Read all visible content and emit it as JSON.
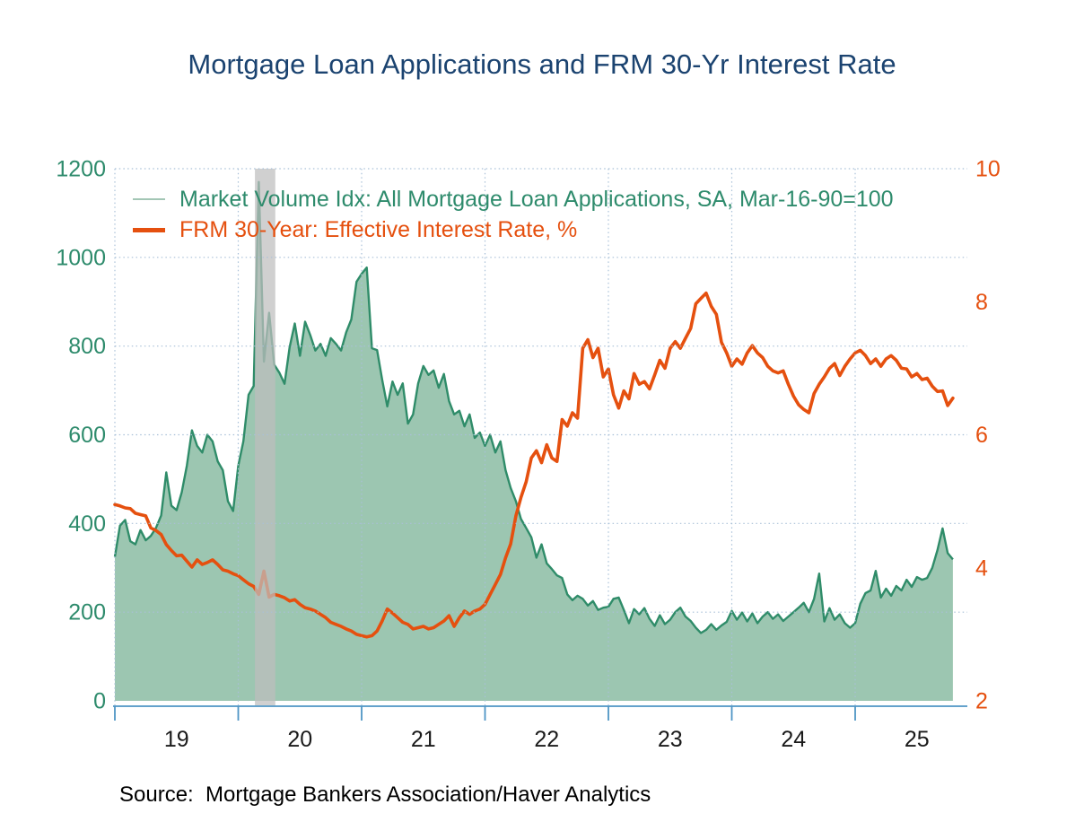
{
  "title": "Mortgage Loan Applications and FRM 30-Yr Interest Rate",
  "source_line": "Source:  Mortgage Bankers Association/Haver Analytics",
  "legend": [
    {
      "label": "Market Volume Idx: All Mortgage Loan Applications, SA, Mar-16-90=100",
      "marker_color": "#a3c6b5",
      "text_color": "#2e8b6c"
    },
    {
      "label": "FRM 30-Year: Effective Interest Rate, %",
      "marker_color": "#e5500f",
      "text_color": "#e5500f"
    }
  ],
  "colors": {
    "title": "#1b4370",
    "volume_fill": "#9cc6b1",
    "volume_line": "#2f8c69",
    "rate_line": "#e5500f",
    "gridline": "#a9c0d8",
    "axis_line": "#4e95c5",
    "left_tick_label": "#2e8b6c",
    "right_tick_label": "#e5500f",
    "x_tick_label": "#1a1a1a",
    "recession_band": "rgba(190,190,190,0.72)"
  },
  "axes": {
    "left": {
      "tick_labels": [
        "0",
        "200",
        "400",
        "600",
        "800",
        "1000",
        "1200"
      ],
      "tick_values": [
        0,
        200,
        400,
        600,
        800,
        1000,
        1200
      ]
    },
    "right": {
      "tick_labels": [
        "2",
        "4",
        "6",
        "8",
        "10"
      ],
      "tick_values": [
        2,
        4,
        6,
        8,
        10
      ]
    },
    "x": {
      "tick_labels": [
        "19",
        "20",
        "21",
        "22",
        "23",
        "24",
        "25"
      ],
      "tick_years": [
        2019,
        2020,
        2021,
        2022,
        2023,
        2024,
        2025
      ]
    }
  },
  "chart_data": {
    "type": "area+line combo, dual y-axis, weekly time series",
    "x_domain": [
      2019.0,
      2025.792
    ],
    "x_start": 2019.0,
    "x_step_years": 0.0416667,
    "left_ylim": [
      0,
      1200
    ],
    "right_ylim": [
      2,
      10
    ],
    "grid": "dotted horizontal at left-axis ticks, dotted vertical at year ticks",
    "legend_position": "top-left inside plot",
    "recession_band": {
      "x_start": 2020.135,
      "x_end": 2020.3,
      "note": "gray shaded recession bar (COVID-19)"
    },
    "series": [
      {
        "name": "Market Volume Idx: All Mortgage Loan Applications, SA, Mar-16-90=100",
        "type": "area",
        "axis": "left",
        "values": [
          325,
          395,
          408,
          360,
          353,
          385,
          362,
          372,
          390,
          418,
          515,
          440,
          430,
          470,
          530,
          610,
          575,
          560,
          600,
          585,
          540,
          520,
          450,
          428,
          530,
          585,
          690,
          710,
          1170,
          765,
          875,
          758,
          740,
          715,
          798,
          851,
          778,
          855,
          825,
          790,
          805,
          778,
          818,
          805,
          790,
          831,
          860,
          945,
          963,
          977,
          795,
          791,
          724,
          664,
          720,
          690,
          716,
          625,
          646,
          716,
          755,
          735,
          745,
          706,
          737,
          676,
          646,
          654,
          619,
          646,
          593,
          605,
          575,
          600,
          560,
          585,
          520,
          480,
          450,
          410,
          390,
          369,
          323,
          353,
          310,
          297,
          283,
          277,
          240,
          227,
          237,
          230,
          215,
          225,
          205,
          210,
          212,
          230,
          233,
          205,
          175,
          207,
          195,
          209,
          185,
          169,
          193,
          173,
          183,
          200,
          210,
          190,
          180,
          165,
          153,
          160,
          173,
          160,
          170,
          178,
          203,
          183,
          199,
          179,
          197,
          175,
          190,
          200,
          185,
          195,
          180,
          190,
          200,
          210,
          221,
          200,
          230,
          287,
          179,
          209,
          183,
          195,
          175,
          165,
          175,
          219,
          243,
          249,
          293,
          233,
          253,
          237,
          259,
          249,
          273,
          257,
          279,
          273,
          277,
          300,
          340,
          389,
          333,
          319
        ]
      },
      {
        "name": "FRM 30-Year: Effective Interest Rate, %",
        "type": "line",
        "axis": "right",
        "values": [
          4.95,
          4.93,
          4.9,
          4.89,
          4.82,
          4.8,
          4.78,
          4.6,
          4.56,
          4.5,
          4.35,
          4.26,
          4.18,
          4.19,
          4.1,
          4.01,
          4.12,
          4.05,
          4.08,
          4.12,
          4.05,
          3.97,
          3.95,
          3.91,
          3.88,
          3.82,
          3.76,
          3.72,
          3.6,
          3.95,
          3.56,
          3.6,
          3.58,
          3.55,
          3.5,
          3.52,
          3.45,
          3.4,
          3.38,
          3.35,
          3.3,
          3.25,
          3.18,
          3.15,
          3.12,
          3.08,
          3.05,
          3.0,
          2.98,
          2.96,
          2.98,
          3.05,
          3.2,
          3.38,
          3.32,
          3.25,
          3.18,
          3.15,
          3.08,
          3.1,
          3.12,
          3.08,
          3.1,
          3.15,
          3.2,
          3.28,
          3.12,
          3.25,
          3.35,
          3.3,
          3.35,
          3.38,
          3.45,
          3.6,
          3.75,
          3.9,
          4.15,
          4.36,
          4.78,
          5.06,
          5.29,
          5.65,
          5.76,
          5.58,
          5.85,
          5.65,
          5.6,
          6.23,
          6.13,
          6.33,
          6.25,
          7.3,
          7.43,
          7.16,
          7.3,
          6.87,
          6.99,
          6.6,
          6.4,
          6.66,
          6.54,
          6.92,
          6.76,
          6.8,
          6.69,
          6.9,
          7.12,
          7.0,
          7.3,
          7.4,
          7.3,
          7.45,
          7.6,
          7.97,
          8.05,
          8.13,
          7.93,
          7.81,
          7.39,
          7.23,
          7.03,
          7.14,
          7.06,
          7.23,
          7.34,
          7.23,
          7.16,
          7.03,
          6.96,
          6.93,
          6.96,
          6.76,
          6.58,
          6.45,
          6.38,
          6.33,
          6.62,
          6.76,
          6.87,
          7.0,
          7.07,
          6.89,
          7.03,
          7.14,
          7.23,
          7.27,
          7.19,
          7.07,
          7.14,
          7.03,
          7.14,
          7.19,
          7.12,
          7.0,
          6.99,
          6.87,
          6.92,
          6.83,
          6.85,
          6.73,
          6.65,
          6.66,
          6.44,
          6.55
        ]
      }
    ]
  }
}
